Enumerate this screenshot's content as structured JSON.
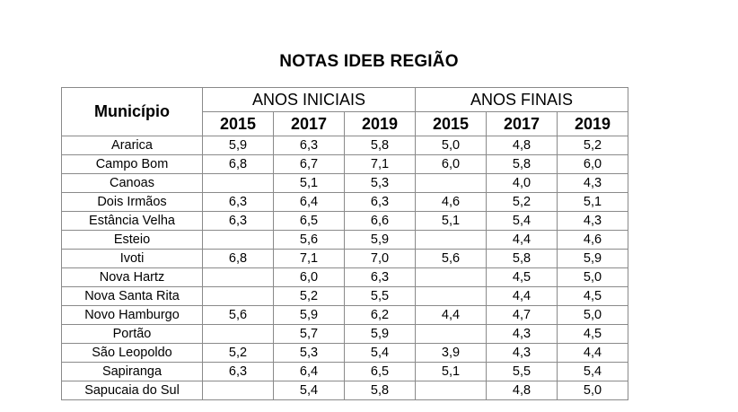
{
  "title": "NOTAS IDEB REGIÃO",
  "header": {
    "municipio": "Município",
    "anos_iniciais": "ANOS INICIAIS",
    "anos_finais": "ANOS FINAIS",
    "years": [
      "2015",
      "2017",
      "2019",
      "2015",
      "2017",
      "2019"
    ]
  },
  "rows": [
    {
      "municipio": "Ararica",
      "values": [
        "5,9",
        "6,3",
        "5,8",
        "5,0",
        "4,8",
        "5,2"
      ]
    },
    {
      "municipio": "Campo Bom",
      "values": [
        "6,8",
        "6,7",
        "7,1",
        "6,0",
        "5,8",
        "6,0"
      ]
    },
    {
      "municipio": "Canoas",
      "values": [
        "",
        "5,1",
        "5,3",
        "",
        "4,0",
        "4,3"
      ]
    },
    {
      "municipio": "Dois Irmãos",
      "values": [
        "6,3",
        "6,4",
        "6,3",
        "4,6",
        "5,2",
        "5,1"
      ]
    },
    {
      "municipio": "Estância Velha",
      "values": [
        "6,3",
        "6,5",
        "6,6",
        "5,1",
        "5,4",
        "4,3"
      ]
    },
    {
      "municipio": "Esteio",
      "values": [
        "",
        "5,6",
        "5,9",
        "",
        "4,4",
        "4,6"
      ]
    },
    {
      "municipio": "Ivoti",
      "values": [
        "6,8",
        "7,1",
        "7,0",
        "5,6",
        "5,8",
        "5,9"
      ]
    },
    {
      "municipio": "Nova Hartz",
      "values": [
        "",
        "6,0",
        "6,3",
        "",
        "4,5",
        "5,0"
      ]
    },
    {
      "municipio": "Nova Santa Rita",
      "values": [
        "",
        "5,2",
        "5,5",
        "",
        "4,4",
        "4,5"
      ]
    },
    {
      "municipio": "Novo Hamburgo",
      "values": [
        "5,6",
        "5,9",
        "6,2",
        "4,4",
        "4,7",
        "5,0"
      ]
    },
    {
      "municipio": "Portão",
      "values": [
        "",
        "5,7",
        "5,9",
        "",
        "4,3",
        "4,5"
      ]
    },
    {
      "municipio": "São Leopoldo",
      "values": [
        "5,2",
        "5,3",
        "5,4",
        "3,9",
        "4,3",
        "4,4"
      ]
    },
    {
      "municipio": "Sapiranga",
      "values": [
        "6,3",
        "6,4",
        "6,5",
        "5,1",
        "5,5",
        "5,4"
      ]
    },
    {
      "municipio": "Sapucaia do Sul",
      "values": [
        "",
        "5,4",
        "5,8",
        "",
        "4,8",
        "5,0"
      ]
    }
  ]
}
